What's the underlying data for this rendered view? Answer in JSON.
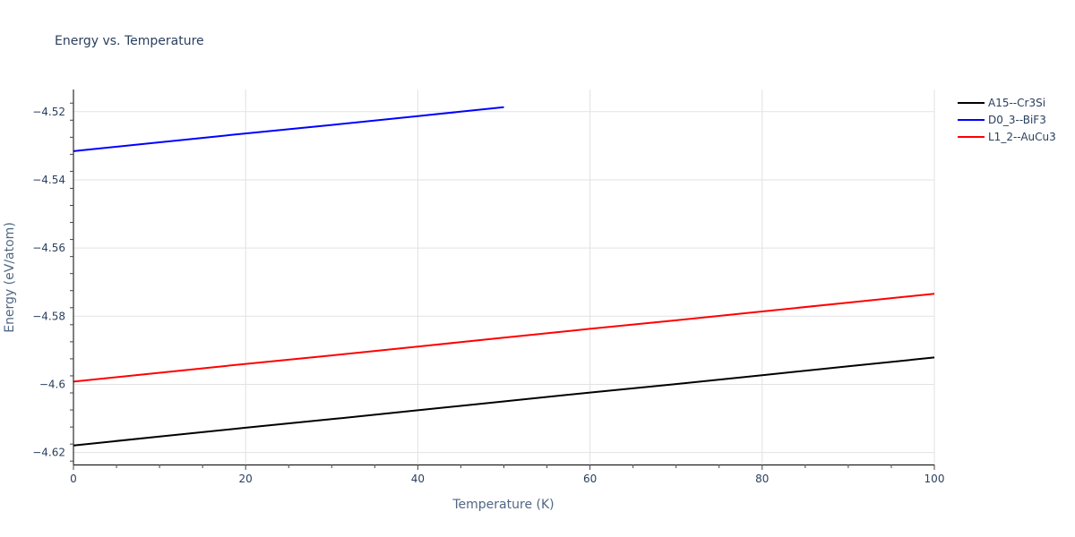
{
  "chart_data": {
    "type": "line",
    "title": "Energy vs. Temperature",
    "xlabel": "Temperature (K)",
    "ylabel": "Energy (eV/atom)",
    "xlim": [
      0,
      100
    ],
    "ylim": [
      -4.6235,
      -4.5135
    ],
    "x_ticks": [
      0,
      20,
      40,
      60,
      80,
      100
    ],
    "x_tick_labels": [
      "0",
      "20",
      "40",
      "60",
      "80",
      "100"
    ],
    "y_ticks": [
      -4.62,
      -4.6,
      -4.58,
      -4.56,
      -4.54,
      -4.52
    ],
    "y_tick_labels": [
      "−4.62",
      "−4.6",
      "−4.58",
      "−4.56",
      "−4.54",
      "−4.52"
    ],
    "grid": true,
    "legend_position": "right-top",
    "series": [
      {
        "name": "A15--Cr3Si",
        "color": "#000000",
        "x": [
          0,
          10,
          20,
          30,
          40,
          50,
          60,
          70,
          80,
          90,
          100
        ],
        "values": [
          -4.6179,
          -4.6153,
          -4.6127,
          -4.6102,
          -4.6076,
          -4.605,
          -4.6024,
          -4.5999,
          -4.5973,
          -4.5947,
          -4.5921
        ]
      },
      {
        "name": "D0_3--BiF3",
        "color": "#0000ff",
        "x": [
          0,
          10,
          20,
          30,
          40,
          50
        ],
        "values": [
          -4.5316,
          -4.529,
          -4.5264,
          -4.5239,
          -4.5213,
          -4.5187
        ]
      },
      {
        "name": "L1_2--AuCu3",
        "color": "#ff0000",
        "x": [
          0,
          10,
          20,
          30,
          40,
          50,
          60,
          70,
          80,
          90,
          100
        ],
        "values": [
          -4.5992,
          -4.5966,
          -4.594,
          -4.5915,
          -4.5889,
          -4.5863,
          -4.5837,
          -4.5812,
          -4.5786,
          -4.576,
          -4.5734
        ]
      }
    ]
  }
}
